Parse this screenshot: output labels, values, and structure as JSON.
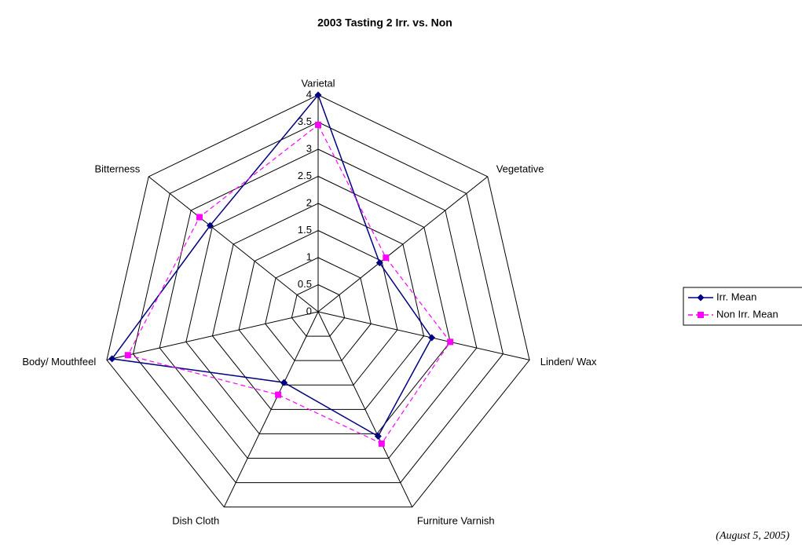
{
  "chart_data": {
    "type": "radar",
    "title": "2003 Tasting 2 Irr. vs. Non",
    "categories": [
      "Varietal",
      "Vegetative",
      "Linden/ Wax",
      "Furniture Varnish",
      "Dish Cloth",
      "Body/ Mouthfeel",
      "Bitterness"
    ],
    "series": [
      {
        "name": "Irr. Mean",
        "color": "#000080",
        "dash": false,
        "marker": "diamond",
        "values": [
          4,
          1.45,
          2.15,
          2.55,
          1.45,
          3.9,
          2.55
        ]
      },
      {
        "name": "Non Irr. Mean",
        "color": "#ff00ff",
        "dash": true,
        "marker": "square",
        "values": [
          3.45,
          1.6,
          2.5,
          2.7,
          1.7,
          3.6,
          2.8
        ]
      }
    ],
    "ylim": [
      0,
      4
    ],
    "yticks": [
      0,
      0.5,
      1,
      1.5,
      2,
      2.5,
      3,
      3.5,
      4
    ],
    "grid": true,
    "legend": "right",
    "annotation": "(August 5, 2005)"
  }
}
